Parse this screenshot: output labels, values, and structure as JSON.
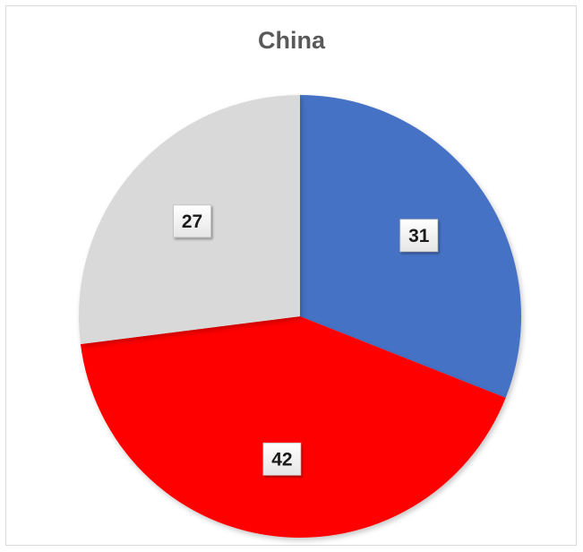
{
  "chart_data": {
    "type": "pie",
    "title": "China",
    "categories": [
      "",
      "",
      ""
    ],
    "values": [
      31,
      42,
      27
    ],
    "data_labels": [
      "31",
      "42",
      "27"
    ],
    "colors": [
      "#4472C4",
      "#FF0000",
      "#D9D9D9"
    ],
    "start_angle": "12 o'clock",
    "direction": "clockwise",
    "legend": "none"
  }
}
